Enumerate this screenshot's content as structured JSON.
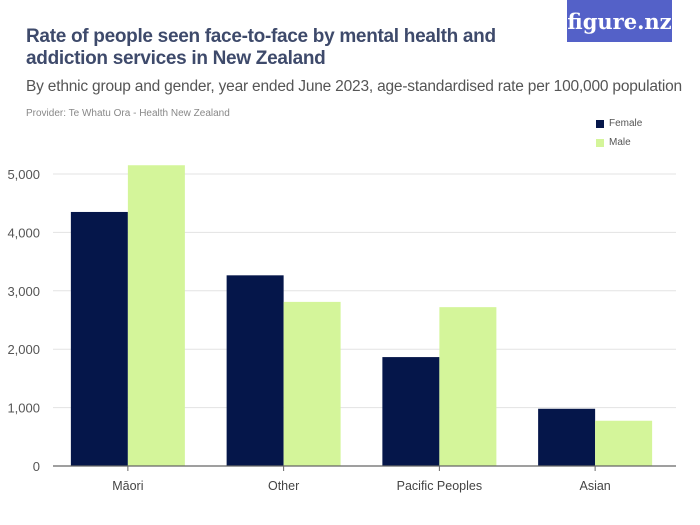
{
  "title": "Rate of people seen face-to-face by mental health and addiction services in New Zealand",
  "subtitle": "By ethnic group and gender, year ended June 2023, age-standardised rate per 100,000 population",
  "provider": "Provider: Te Whatu Ora - Health New Zealand",
  "logo": "figure.nz",
  "chart_data": {
    "type": "bar",
    "categories": [
      "Māori",
      "Other",
      "Pacific Peoples",
      "Asian"
    ],
    "series": [
      {
        "name": "Female",
        "color": "#05164a",
        "values": [
          4350,
          3265,
          1865,
          980
        ]
      },
      {
        "name": "Male",
        "color": "#d4f59a",
        "values": [
          5150,
          2810,
          2720,
          775
        ]
      }
    ],
    "ylim": [
      0,
      5000
    ],
    "yticks": [
      0,
      1000,
      2000,
      3000,
      4000,
      5000
    ],
    "ytick_labels": [
      "0",
      "1,000",
      "2,000",
      "3,000",
      "4,000",
      "5,000"
    ],
    "grid": true,
    "legend": "top-right"
  }
}
